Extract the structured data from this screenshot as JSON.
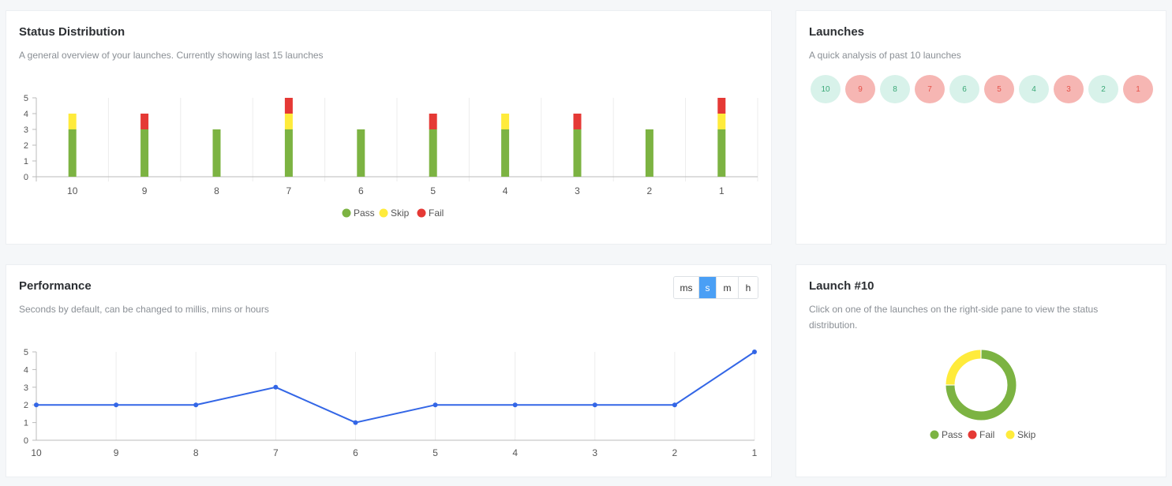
{
  "status_card": {
    "title": "Status Distribution",
    "subtitle": "A general overview of your launches. Currently showing last 15 launches"
  },
  "launches_card": {
    "title": "Launches",
    "subtitle": "A quick analysis of past 10 launches",
    "items": [
      {
        "label": "10",
        "state": "pass"
      },
      {
        "label": "9",
        "state": "fail"
      },
      {
        "label": "8",
        "state": "pass"
      },
      {
        "label": "7",
        "state": "fail"
      },
      {
        "label": "6",
        "state": "pass"
      },
      {
        "label": "5",
        "state": "fail"
      },
      {
        "label": "4",
        "state": "pass"
      },
      {
        "label": "3",
        "state": "fail"
      },
      {
        "label": "2",
        "state": "pass"
      },
      {
        "label": "1",
        "state": "fail"
      }
    ]
  },
  "perf_card": {
    "title": "Performance",
    "subtitle": "Seconds by default, can be changed to millis, mins or hours",
    "units": [
      "ms",
      "s",
      "m",
      "h"
    ],
    "active_unit": "s"
  },
  "launch_detail_card": {
    "title": "Launch #10",
    "subtitle": "Click on one of the launches on the right-side pane to view the status distribution."
  },
  "colors": {
    "pass": "#7cb342",
    "skip": "#ffeb3b",
    "fail": "#e53935",
    "line": "#3366e6",
    "pass_circle_bg": "#d8f2ea",
    "fail_circle_bg": "#f6b6b3",
    "active_unit": "#4a9ff5"
  },
  "chart_data": [
    {
      "type": "bar",
      "stacked": true,
      "categories": [
        "10",
        "9",
        "8",
        "7",
        "6",
        "5",
        "4",
        "3",
        "2",
        "1"
      ],
      "series": [
        {
          "name": "Pass",
          "values": [
            3,
            3,
            3,
            3,
            3,
            3,
            3,
            3,
            3,
            3
          ]
        },
        {
          "name": "Skip",
          "values": [
            1,
            0,
            0,
            1,
            0,
            0,
            1,
            0,
            0,
            1
          ]
        },
        {
          "name": "Fail",
          "values": [
            0,
            1,
            0,
            1,
            0,
            1,
            0,
            1,
            0,
            1
          ]
        }
      ],
      "ylim": [
        0,
        5
      ],
      "yticks": [
        0,
        1,
        2,
        3,
        4,
        5
      ],
      "legend": "bottom",
      "grid": "vertical"
    },
    {
      "type": "line",
      "x": [
        "10",
        "9",
        "8",
        "7",
        "6",
        "5",
        "4",
        "3",
        "2",
        "1"
      ],
      "series": [
        {
          "values": [
            2,
            2,
            2,
            3,
            1,
            2,
            2,
            2,
            2,
            5
          ]
        }
      ],
      "ylim": [
        0,
        5
      ],
      "yticks": [
        0,
        1,
        2,
        3,
        4,
        5
      ],
      "grid": "vertical"
    },
    {
      "type": "pie",
      "donut": true,
      "labels": [
        "Pass",
        "Fail",
        "Skip"
      ],
      "values": [
        3,
        0,
        1
      ],
      "legend": "bottom"
    }
  ]
}
